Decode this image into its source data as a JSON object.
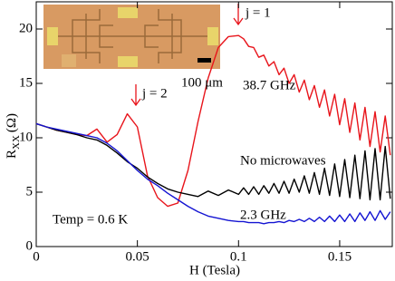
{
  "chart_data": {
    "type": "line",
    "xlabel": "H (Tesla)",
    "ylabel": "R",
    "ylabel_sub": "XX",
    "ylabel_unit": "(Ω)",
    "xlim": [
      0,
      0.176
    ],
    "ylim": [
      0,
      22.5
    ],
    "xticks": [
      0,
      0.05,
      0.1,
      0.15
    ],
    "yticks": [
      0,
      5,
      10,
      15,
      20
    ],
    "annotations": [
      "j = 2",
      "j = 1",
      "Temp = 0.6 K",
      "100 μm"
    ],
    "x": [
      0,
      0.005,
      0.01,
      0.015,
      0.02,
      0.025,
      0.03,
      0.035,
      0.04,
      0.045,
      0.05,
      0.055,
      0.06,
      0.065,
      0.07,
      0.075,
      0.08,
      0.085,
      0.09,
      0.095,
      0.1,
      0.1025,
      0.105,
      0.1075,
      0.11,
      0.1125,
      0.115,
      0.1175,
      0.12,
      0.1225,
      0.125,
      0.1275,
      0.13,
      0.1325,
      0.135,
      0.1375,
      0.14,
      0.1425,
      0.145,
      0.1475,
      0.15,
      0.1525,
      0.155,
      0.1575,
      0.16,
      0.1625,
      0.165,
      0.1675,
      0.17,
      0.1725,
      0.175
    ],
    "series": [
      {
        "name": "38.7 GHz",
        "color": "#e8141b",
        "values": [
          11.3,
          11.0,
          10.7,
          10.5,
          10.3,
          10.2,
          10.8,
          9.6,
          10.3,
          12.2,
          11.0,
          6.5,
          4.5,
          3.7,
          4.0,
          7.0,
          11.5,
          15.5,
          18.3,
          19.3,
          19.4,
          19.1,
          18.4,
          18.3,
          17.4,
          17.6,
          16.6,
          17.0,
          15.8,
          16.4,
          15.0,
          15.8,
          14.2,
          15.3,
          13.5,
          14.8,
          12.8,
          14.4,
          12.0,
          14.0,
          11.2,
          13.6,
          10.5,
          13.2,
          9.8,
          12.8,
          9.2,
          12.4,
          8.7,
          12.0,
          8.4
        ]
      },
      {
        "name": "No microwaves",
        "color": "#000000",
        "values": [
          11.3,
          11.0,
          10.7,
          10.5,
          10.3,
          10.0,
          9.8,
          9.3,
          8.6,
          7.8,
          7.2,
          6.4,
          5.8,
          5.3,
          5.0,
          4.8,
          4.6,
          5.1,
          4.7,
          5.2,
          4.8,
          5.4,
          4.8,
          5.5,
          4.8,
          5.6,
          4.9,
          5.8,
          4.9,
          6.0,
          4.9,
          6.2,
          5.0,
          6.5,
          4.9,
          6.8,
          4.8,
          7.2,
          4.7,
          7.6,
          4.6,
          8.0,
          4.5,
          8.4,
          4.4,
          8.8,
          4.3,
          9.0,
          4.3,
          9.2,
          4.4
        ]
      },
      {
        "name": "2.3 GHz",
        "color": "#1414d2",
        "values": [
          11.3,
          11.0,
          10.8,
          10.6,
          10.4,
          10.2,
          10.0,
          9.5,
          8.8,
          7.9,
          7.0,
          6.2,
          5.6,
          4.9,
          4.3,
          3.7,
          3.2,
          2.8,
          2.6,
          2.4,
          2.3,
          2.3,
          2.2,
          2.2,
          2.2,
          2.1,
          2.2,
          2.2,
          2.3,
          2.2,
          2.4,
          2.3,
          2.5,
          2.3,
          2.6,
          2.3,
          2.7,
          2.3,
          2.8,
          2.3,
          2.9,
          2.3,
          3.0,
          2.3,
          3.1,
          2.4,
          3.2,
          2.4,
          3.3,
          2.5,
          3.2
        ]
      }
    ]
  }
}
